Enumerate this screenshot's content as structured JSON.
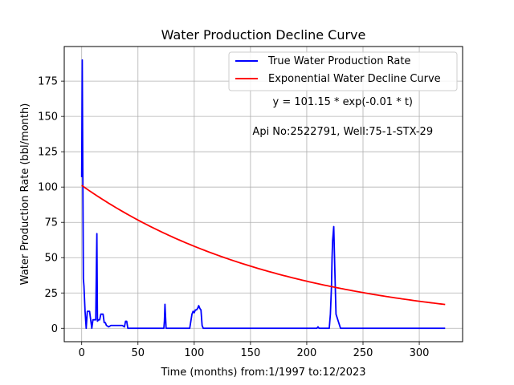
{
  "chart_data": {
    "type": "line",
    "title": "Water Production Decline Curve",
    "xlabel": "Time (months) from:1/1997 to:12/2023",
    "ylabel": "Water Production Rate (bbl/month)",
    "xlim": [
      -15.5,
      338.5
    ],
    "ylim": [
      -9.5,
      199.5
    ],
    "xticks": [
      0,
      50,
      100,
      150,
      200,
      250,
      300
    ],
    "yticks": [
      0,
      25,
      50,
      75,
      100,
      125,
      150,
      175
    ],
    "grid": true,
    "legend_position": "top-right",
    "annotations": [
      {
        "text": "y = 101.15 * exp(-0.01 * t)",
        "x": 232,
        "y": 158
      },
      {
        "text": "Api No:2522791, Well:75-1-STX-29",
        "x": 232,
        "y": 137
      }
    ],
    "series": [
      {
        "name": "True Water Production Rate",
        "color": "#0000ff",
        "kind": "line",
        "x": [
          0,
          0.5,
          1,
          1.5,
          2,
          3,
          4,
          5,
          6,
          7,
          8,
          9,
          10,
          11,
          12,
          12.5,
          13,
          13.5,
          14,
          15,
          16,
          17,
          18,
          19,
          20,
          21,
          22,
          24,
          26,
          28,
          30,
          32,
          34,
          36,
          38,
          39,
          40,
          41,
          42,
          44,
          50,
          60,
          70,
          72,
          73,
          73.5,
          74,
          75,
          80,
          90,
          95,
          96,
          97,
          98,
          99,
          100,
          101,
          102,
          103,
          104,
          105,
          106,
          107,
          108,
          109,
          110,
          120,
          150,
          200,
          209,
          210,
          211,
          212,
          215,
          219,
          220,
          221,
          222,
          222.5,
          223,
          224,
          225,
          226,
          230,
          250,
          300,
          323
        ],
        "y": [
          107,
          190,
          110,
          35,
          30,
          12,
          0,
          12,
          12,
          12,
          6,
          0,
          6,
          6,
          6,
          6,
          40,
          67,
          5,
          6,
          6,
          10,
          10,
          10,
          4,
          4,
          2,
          1,
          2,
          2,
          2,
          2,
          2,
          2,
          1,
          5,
          5,
          0,
          0,
          0,
          0,
          0,
          0,
          0,
          0,
          5,
          17,
          0,
          0,
          0,
          0,
          0,
          5,
          10,
          12,
          11,
          13,
          13,
          14,
          16,
          14,
          13,
          2,
          0,
          0,
          0,
          0,
          0,
          0,
          0,
          1,
          0,
          0,
          0,
          0,
          0,
          10,
          30,
          50,
          62,
          72,
          40,
          10,
          0,
          0,
          0,
          0
        ]
      },
      {
        "name": "Exponential Water Decline Curve",
        "color": "#ff0000",
        "kind": "exponential",
        "a": 101.15,
        "b": 0.00555,
        "x_range": [
          0,
          323
        ]
      }
    ]
  }
}
